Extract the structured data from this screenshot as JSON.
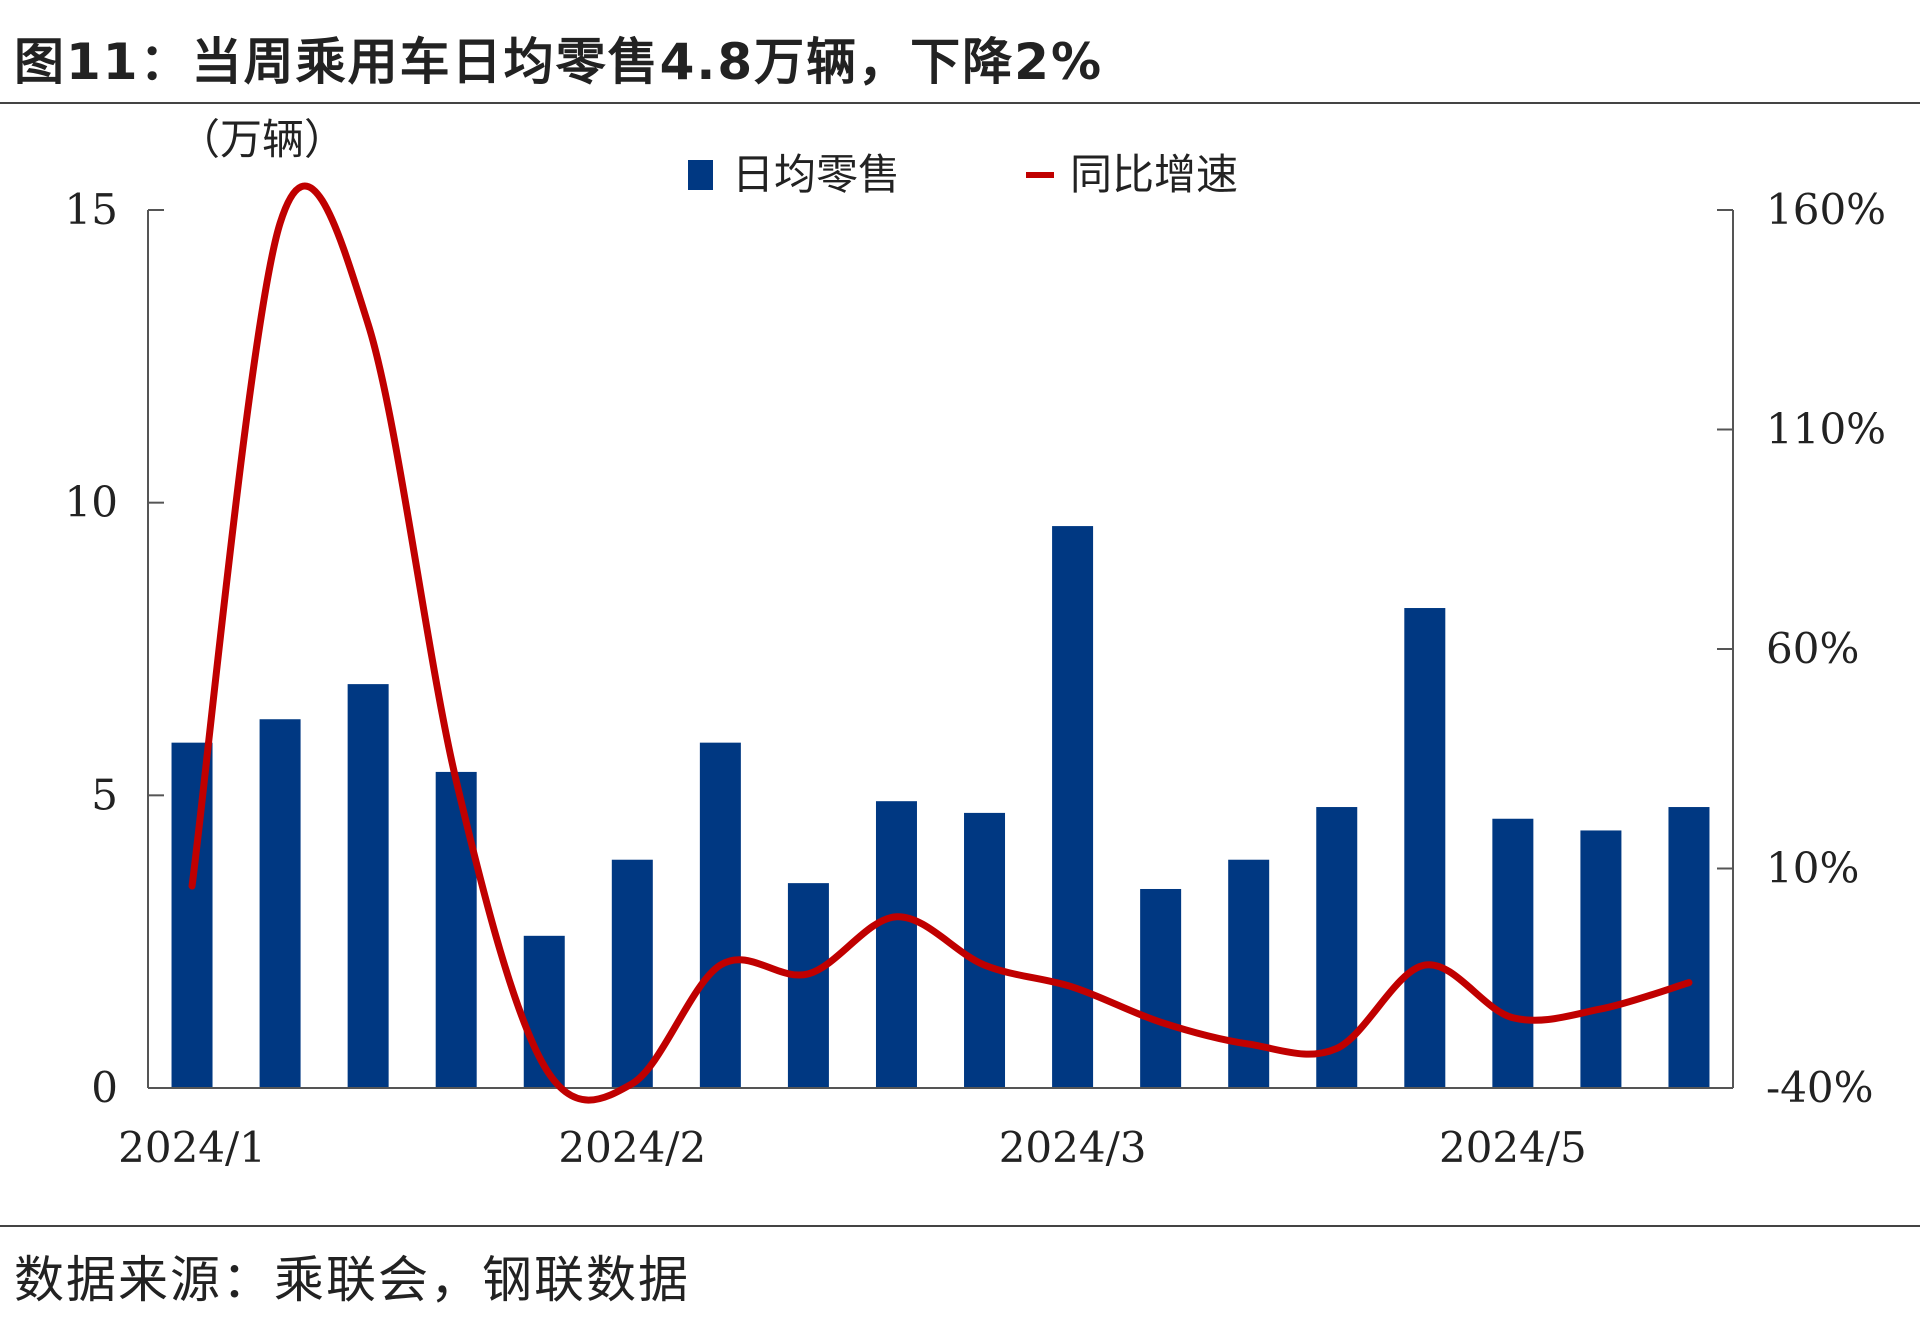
{
  "title": "图11：当周乘用车日均零售4.8万辆，下降2%",
  "source": "数据来源：乘联会，钢联数据",
  "colors": {
    "bar": "#003882",
    "line": "#c00000",
    "axis": "#555555"
  },
  "chart_data": {
    "type": "bar+line",
    "y_unit_label": "（万辆）",
    "ylim": [
      0,
      15
    ],
    "y_ticks": [
      "0",
      "5",
      "10",
      "15"
    ],
    "y2lim": [
      -40,
      160
    ],
    "y2_ticks": [
      "-40%",
      "10%",
      "60%",
      "110%",
      "160%"
    ],
    "x_tick_labels": [
      {
        "label": "2024/1",
        "index": 0
      },
      {
        "label": "2024/2",
        "index": 5
      },
      {
        "label": "2024/3",
        "index": 10
      },
      {
        "label": "2024/5",
        "index": 15
      }
    ],
    "legend": [
      "日均零售",
      "同比增速"
    ],
    "legend_position": "top-center",
    "series": [
      {
        "name": "日均零售",
        "type": "bar",
        "axis": "left",
        "values": [
          5.9,
          6.3,
          6.9,
          5.4,
          2.6,
          3.9,
          5.9,
          3.5,
          4.9,
          4.7,
          9.6,
          3.4,
          3.9,
          4.8,
          8.2,
          4.6,
          4.4,
          4.8
        ]
      },
      {
        "name": "同比增速",
        "type": "line",
        "axis": "right",
        "values": [
          6,
          157,
          134,
          30,
          -35,
          -39,
          -12,
          -14,
          -1,
          -12,
          -17,
          -25,
          -30,
          -31,
          -12,
          -24,
          -22,
          -16
        ]
      }
    ]
  }
}
